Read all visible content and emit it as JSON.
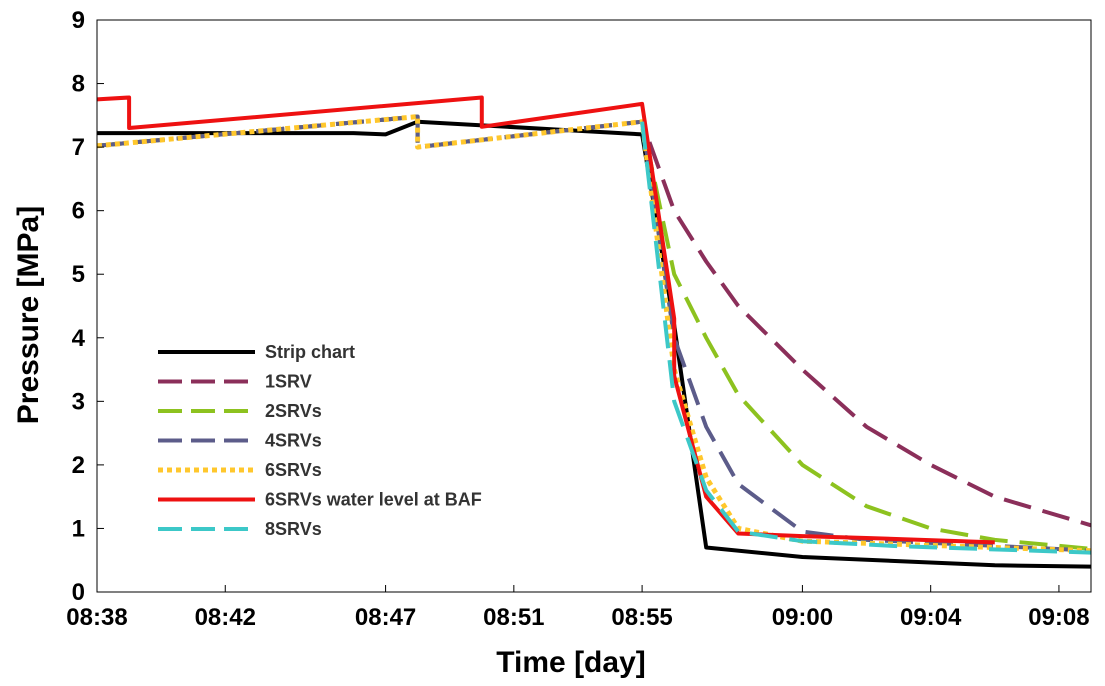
{
  "chart_data": {
    "type": "line",
    "title": "",
    "xlabel": "Time [day]",
    "ylabel": "Pressure [MPa]",
    "xlim": [
      "08:38",
      "09:09"
    ],
    "ylim": [
      0,
      9
    ],
    "x_tick_labels": [
      "08:38",
      "08:42",
      "08:47",
      "08:51",
      "08:55",
      "09:00",
      "09:04",
      "09:08"
    ],
    "y_tick_labels": [
      "0",
      "1",
      "2",
      "3",
      "4",
      "5",
      "6",
      "7",
      "8",
      "9"
    ],
    "grid": false,
    "legend_position": "lower-left",
    "series": [
      {
        "name": "Strip chart",
        "color": "#000000",
        "style": "solid",
        "x": [
          "08:38",
          "08:46",
          "08:47",
          "08:48",
          "08:55",
          "08:56",
          "08:57",
          "09:00",
          "09:06",
          "09:09"
        ],
        "y": [
          7.22,
          7.22,
          7.2,
          7.4,
          7.2,
          4.2,
          0.7,
          0.55,
          0.42,
          0.4
        ]
      },
      {
        "name": "1SRV",
        "color": "#8b2f5a",
        "style": "dashed",
        "x": [
          "08:38",
          "08:48",
          "08:48",
          "08:55",
          "08:56",
          "08:57",
          "08:58",
          "09:00",
          "09:02",
          "09:04",
          "09:06",
          "09:09"
        ],
        "y": [
          7.02,
          7.48,
          7.0,
          7.4,
          6.0,
          5.2,
          4.5,
          3.5,
          2.6,
          2.0,
          1.5,
          1.05
        ]
      },
      {
        "name": "2SRVs",
        "color": "#8dc21f",
        "style": "dashed",
        "x": [
          "08:38",
          "08:48",
          "08:48",
          "08:55",
          "08:56",
          "08:57",
          "08:58",
          "09:00",
          "09:02",
          "09:04",
          "09:06",
          "09:09"
        ],
        "y": [
          7.02,
          7.48,
          7.0,
          7.4,
          5.0,
          4.0,
          3.1,
          2.0,
          1.35,
          1.0,
          0.82,
          0.68
        ]
      },
      {
        "name": "4SRVs",
        "color": "#5c5c8a",
        "style": "dashed",
        "x": [
          "08:38",
          "08:48",
          "08:48",
          "08:55",
          "08:56",
          "08:57",
          "08:58",
          "09:00",
          "09:02",
          "09:05",
          "09:09"
        ],
        "y": [
          7.02,
          7.48,
          7.0,
          7.4,
          4.0,
          2.6,
          1.7,
          0.95,
          0.82,
          0.75,
          0.65
        ]
      },
      {
        "name": "6SRVs",
        "color": "#ffc72c",
        "style": "dotted",
        "x": [
          "08:38",
          "08:48",
          "08:48",
          "08:55",
          "08:56",
          "08:57",
          "08:58",
          "09:00",
          "09:03",
          "09:09"
        ],
        "y": [
          7.02,
          7.48,
          7.0,
          7.4,
          3.5,
          1.8,
          1.0,
          0.8,
          0.75,
          0.65
        ]
      },
      {
        "name": "6SRVs water level at BAF",
        "color": "#ee1111",
        "style": "solid",
        "x": [
          "08:38",
          "08:39",
          "08:39",
          "08:50",
          "08:50",
          "08:55",
          "08:56",
          "08:56",
          "08:57",
          "08:58",
          "09:00",
          "09:02",
          "09:06"
        ],
        "y": [
          7.75,
          7.78,
          7.3,
          7.78,
          7.32,
          7.68,
          4.3,
          3.4,
          1.5,
          0.92,
          0.88,
          0.85,
          0.78
        ]
      },
      {
        "name": "8SRVs",
        "color": "#3cc8c8",
        "style": "dashed",
        "x": [
          "08:55",
          "08:56",
          "08:57",
          "08:58",
          "09:00",
          "09:03",
          "09:09"
        ],
        "y": [
          7.4,
          3.0,
          1.6,
          0.95,
          0.8,
          0.72,
          0.62
        ]
      }
    ]
  }
}
